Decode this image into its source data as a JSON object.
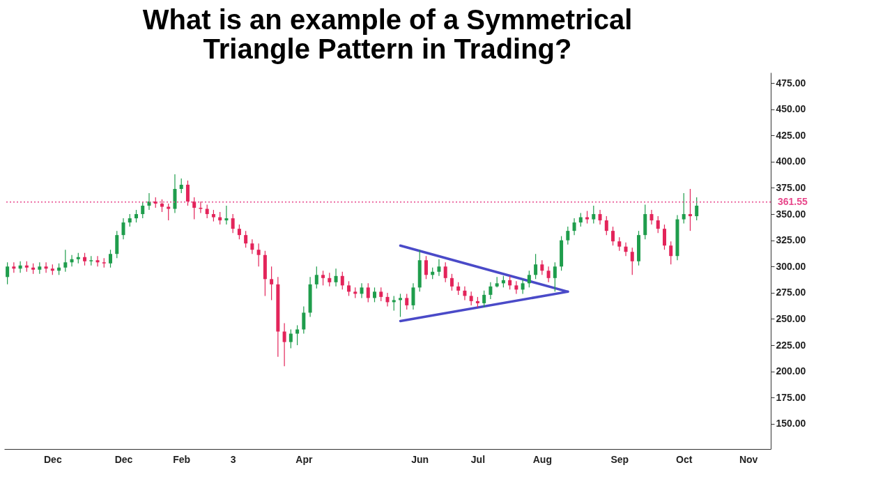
{
  "chart_data": {
    "type": "candlestick",
    "title": "What is an example of a Symmetrical\nTriangle Pattern in Trading?",
    "categories": [
      null,
      null,
      null,
      null,
      null,
      null,
      null,
      "Dec",
      null,
      null,
      null,
      null,
      null,
      null,
      null,
      null,
      null,
      null,
      "Dec",
      null,
      null,
      null,
      null,
      null,
      null,
      null,
      null,
      "Feb",
      null,
      null,
      null,
      null,
      null,
      null,
      null,
      "3",
      null,
      null,
      null,
      null,
      null,
      null,
      null,
      null,
      null,
      null,
      "Apr",
      null,
      null,
      null,
      null,
      null,
      null,
      null,
      null,
      null,
      null,
      null,
      null,
      null,
      null,
      null,
      null,
      null,
      "Jun",
      null,
      null,
      null,
      null,
      null,
      null,
      null,
      null,
      "Jul",
      null,
      null,
      null,
      null,
      null,
      null,
      null,
      null,
      null,
      "Aug",
      null,
      null,
      null,
      null,
      null,
      null,
      null,
      null,
      null,
      null,
      null,
      "Sep",
      null,
      null,
      null,
      null,
      null,
      null,
      null,
      null,
      null,
      "Oct",
      null,
      null,
      null,
      null,
      null,
      null,
      null,
      null,
      null,
      "Nov",
      null,
      null,
      null
    ],
    "ylim": [
      126,
      485
    ],
    "yticks": [
      {
        "value": 150,
        "label": "150.00"
      },
      {
        "value": 175,
        "label": "175.00"
      },
      {
        "value": 200,
        "label": "200.00"
      },
      {
        "value": 225,
        "label": "225.00"
      },
      {
        "value": 250,
        "label": "250.00"
      },
      {
        "value": 275,
        "label": "275.00"
      },
      {
        "value": 300,
        "label": "300.00"
      },
      {
        "value": 325,
        "label": "325.00"
      },
      {
        "value": 350,
        "label": "350.00"
      },
      {
        "value": 375,
        "label": "375.00"
      },
      {
        "value": 400,
        "label": "400.00"
      },
      {
        "value": 425,
        "label": "425.00"
      },
      {
        "value": 450,
        "label": "450.00"
      },
      {
        "value": 475,
        "label": "475.00"
      }
    ],
    "grid": false,
    "ohlc": [
      [
        290,
        304,
        283,
        300
      ],
      [
        300,
        304,
        294,
        298
      ],
      [
        298,
        305,
        294,
        301
      ],
      [
        301,
        305,
        295,
        299
      ],
      [
        299,
        303,
        293,
        297
      ],
      [
        297,
        304,
        293,
        300
      ],
      [
        300,
        304,
        294,
        298
      ],
      [
        298,
        302,
        292,
        296
      ],
      [
        296,
        303,
        292,
        299
      ],
      [
        299,
        316,
        295,
        304
      ],
      [
        304,
        311,
        300,
        307
      ],
      [
        307,
        313,
        303,
        309
      ],
      [
        309,
        313,
        301,
        305
      ],
      [
        305,
        310,
        301,
        306
      ],
      [
        306,
        310,
        300,
        304
      ],
      [
        304,
        308,
        299,
        303
      ],
      [
        303,
        316,
        299,
        312
      ],
      [
        312,
        334,
        308,
        330
      ],
      [
        330,
        346,
        326,
        342
      ],
      [
        342,
        350,
        338,
        346
      ],
      [
        346,
        354,
        342,
        350
      ],
      [
        350,
        362,
        346,
        358
      ],
      [
        358,
        370,
        354,
        362
      ],
      [
        362,
        366,
        356,
        360
      ],
      [
        360,
        364,
        352,
        357
      ],
      [
        357,
        360,
        344,
        355
      ],
      [
        355,
        388,
        351,
        374
      ],
      [
        374,
        384,
        370,
        378
      ],
      [
        378,
        382,
        358,
        362
      ],
      [
        362,
        366,
        345,
        356
      ],
      [
        356,
        362,
        351,
        355
      ],
      [
        355,
        359,
        346,
        350
      ],
      [
        350,
        354,
        343,
        347
      ],
      [
        347,
        352,
        340,
        344
      ],
      [
        344,
        358,
        340,
        346
      ],
      [
        346,
        350,
        332,
        336
      ],
      [
        336,
        340,
        326,
        330
      ],
      [
        330,
        334,
        318,
        322
      ],
      [
        322,
        326,
        312,
        316
      ],
      [
        316,
        322,
        300,
        311
      ],
      [
        311,
        315,
        272,
        288
      ],
      [
        288,
        300,
        268,
        283
      ],
      [
        283,
        290,
        214,
        238
      ],
      [
        238,
        246,
        205,
        228
      ],
      [
        228,
        240,
        222,
        236
      ],
      [
        236,
        244,
        225,
        240
      ],
      [
        240,
        262,
        236,
        256
      ],
      [
        256,
        290,
        252,
        283
      ],
      [
        283,
        300,
        279,
        292
      ],
      [
        292,
        296,
        282,
        289
      ],
      [
        289,
        294,
        281,
        285
      ],
      [
        285,
        298,
        281,
        291
      ],
      [
        291,
        295,
        278,
        282
      ],
      [
        282,
        286,
        272,
        276
      ],
      [
        276,
        280,
        270,
        274
      ],
      [
        274,
        284,
        270,
        280
      ],
      [
        280,
        284,
        266,
        270
      ],
      [
        270,
        280,
        266,
        276
      ],
      [
        276,
        280,
        267,
        271
      ],
      [
        271,
        275,
        262,
        266
      ],
      [
        266,
        272,
        258,
        268
      ],
      [
        268,
        274,
        252,
        270
      ],
      [
        270,
        274,
        259,
        263
      ],
      [
        263,
        284,
        259,
        280
      ],
      [
        280,
        316,
        276,
        306
      ],
      [
        306,
        310,
        288,
        292
      ],
      [
        292,
        299,
        288,
        295
      ],
      [
        295,
        307,
        291,
        300
      ],
      [
        300,
        304,
        285,
        289
      ],
      [
        289,
        293,
        277,
        281
      ],
      [
        281,
        285,
        273,
        277
      ],
      [
        277,
        281,
        268,
        272
      ],
      [
        272,
        276,
        263,
        267
      ],
      [
        267,
        271,
        261,
        265
      ],
      [
        265,
        277,
        261,
        273
      ],
      [
        273,
        285,
        269,
        281
      ],
      [
        281,
        290,
        280,
        284
      ],
      [
        284,
        291,
        280,
        287
      ],
      [
        287,
        291,
        278,
        282
      ],
      [
        282,
        286,
        274,
        278
      ],
      [
        278,
        288,
        274,
        284
      ],
      [
        284,
        296,
        280,
        292
      ],
      [
        292,
        312,
        288,
        302
      ],
      [
        302,
        306,
        292,
        296
      ],
      [
        296,
        300,
        285,
        289
      ],
      [
        289,
        304,
        276,
        300
      ],
      [
        300,
        329,
        296,
        325
      ],
      [
        325,
        338,
        321,
        334
      ],
      [
        334,
        346,
        330,
        342
      ],
      [
        342,
        351,
        338,
        347
      ],
      [
        347,
        353,
        341,
        345
      ],
      [
        345,
        358,
        341,
        350
      ],
      [
        350,
        354,
        340,
        344
      ],
      [
        344,
        348,
        330,
        334
      ],
      [
        334,
        338,
        320,
        324
      ],
      [
        324,
        328,
        315,
        319
      ],
      [
        319,
        323,
        310,
        314
      ],
      [
        314,
        318,
        292,
        305
      ],
      [
        305,
        334,
        301,
        330
      ],
      [
        330,
        359,
        326,
        350
      ],
      [
        350,
        354,
        340,
        344
      ],
      [
        344,
        348,
        332,
        336
      ],
      [
        336,
        340,
        316,
        320
      ],
      [
        320,
        324,
        302,
        310
      ],
      [
        310,
        349,
        306,
        345
      ],
      [
        345,
        370,
        341,
        350
      ],
      [
        350,
        374,
        334,
        348
      ],
      [
        348,
        366,
        344,
        358
      ],
      null,
      null,
      null,
      null,
      null,
      null,
      null,
      null,
      null,
      null,
      null
    ],
    "colors": [
      "#1f9d4c",
      "#e3245a",
      "#1f9d4c",
      "#e3245a",
      "#e3245a",
      "#1f9d4c",
      "#e3245a",
      "#e3245a",
      "#1f9d4c",
      "#1f9d4c",
      "#1f9d4c",
      "#1f9d4c",
      "#e3245a",
      "#1f9d4c",
      "#e3245a",
      "#e3245a",
      "#1f9d4c",
      "#1f9d4c",
      "#1f9d4c",
      "#1f9d4c",
      "#1f9d4c",
      "#1f9d4c",
      "#1f9d4c",
      "#e3245a",
      "#e3245a",
      "#e3245a",
      "#1f9d4c",
      "#1f9d4c",
      "#e3245a",
      "#e3245a",
      "#e3245a",
      "#e3245a",
      "#e3245a",
      "#e3245a",
      "#1f9d4c",
      "#e3245a",
      "#e3245a",
      "#e3245a",
      "#e3245a",
      "#e3245a",
      "#e3245a",
      "#e3245a",
      "#e3245a",
      "#e3245a",
      "#1f9d4c",
      "#1f9d4c",
      "#1f9d4c",
      "#1f9d4c",
      "#1f9d4c",
      "#e3245a",
      "#e3245a",
      "#1f9d4c",
      "#e3245a",
      "#e3245a",
      "#e3245a",
      "#1f9d4c",
      "#e3245a",
      "#1f9d4c",
      "#e3245a",
      "#e3245a",
      "#1f9d4c",
      "#1f9d4c",
      "#e3245a",
      "#1f9d4c",
      "#1f9d4c",
      "#e3245a",
      "#1f9d4c",
      "#1f9d4c",
      "#e3245a",
      "#e3245a",
      "#e3245a",
      "#e3245a",
      "#e3245a",
      "#e3245a",
      "#1f9d4c",
      "#1f9d4c",
      "#1f9d4c",
      "#1f9d4c",
      "#e3245a",
      "#e3245a",
      "#1f9d4c",
      "#1f9d4c",
      "#1f9d4c",
      "#e3245a",
      "#e3245a",
      "#1f9d4c",
      "#1f9d4c",
      "#1f9d4c",
      "#1f9d4c",
      "#1f9d4c",
      "#e3245a",
      "#1f9d4c",
      "#e3245a",
      "#e3245a",
      "#e3245a",
      "#e3245a",
      "#e3245a",
      "#e3245a",
      "#1f9d4c",
      "#1f9d4c",
      "#e3245a",
      "#e3245a",
      "#e3245a",
      "#e3245a",
      "#1f9d4c",
      "#1f9d4c",
      "#e3245a",
      "#1f9d4c",
      null,
      null,
      null,
      null,
      null,
      null,
      null,
      null,
      null,
      null,
      null
    ],
    "series": [
      {
        "type": "line",
        "color": "#4a4ac8",
        "values": [
          null,
          null,
          null,
          null,
          null,
          null,
          null,
          null,
          null,
          null,
          null,
          null,
          null,
          null,
          null,
          null,
          null,
          null,
          null,
          null,
          null,
          null,
          null,
          null,
          null,
          null,
          null,
          null,
          null,
          null,
          null,
          null,
          null,
          null,
          null,
          null,
          null,
          null,
          null,
          null,
          null,
          null,
          null,
          null,
          null,
          null,
          null,
          null,
          null,
          null,
          null,
          null,
          null,
          null,
          null,
          null,
          null,
          null,
          null,
          null,
          null,
          320,
          null,
          null,
          null,
          null,
          null,
          null,
          null,
          null,
          null,
          null,
          null,
          null,
          null,
          null,
          null,
          null,
          null,
          null,
          null,
          null,
          null,
          null,
          null,
          null,
          null,
          276,
          null,
          null,
          null,
          null,
          null,
          null,
          null,
          null,
          null,
          null,
          null,
          null,
          null,
          null,
          null,
          null,
          null,
          null,
          null,
          null,
          null,
          null,
          null,
          null,
          null,
          null,
          null,
          null,
          null,
          null,
          null
        ]
      },
      {
        "type": "line",
        "color": "#4a4ac8",
        "values": [
          null,
          null,
          null,
          null,
          null,
          null,
          null,
          null,
          null,
          null,
          null,
          null,
          null,
          null,
          null,
          null,
          null,
          null,
          null,
          null,
          null,
          null,
          null,
          null,
          null,
          null,
          null,
          null,
          null,
          null,
          null,
          null,
          null,
          null,
          null,
          null,
          null,
          null,
          null,
          null,
          null,
          null,
          null,
          null,
          null,
          null,
          null,
          null,
          null,
          null,
          null,
          null,
          null,
          null,
          null,
          null,
          null,
          null,
          null,
          null,
          null,
          248,
          null,
          null,
          null,
          null,
          null,
          null,
          null,
          null,
          null,
          null,
          null,
          null,
          null,
          null,
          null,
          null,
          null,
          null,
          null,
          null,
          null,
          null,
          null,
          null,
          null,
          276,
          null,
          null,
          null,
          null,
          null,
          null,
          null,
          null,
          null,
          null,
          null,
          null,
          null,
          null,
          null,
          null,
          null,
          null,
          null,
          null,
          null,
          null,
          null,
          null,
          null,
          null,
          null,
          null,
          null,
          null,
          null
        ]
      }
    ],
    "ref_lines": [
      {
        "axis": "y",
        "value": 361.55,
        "label": "361.55",
        "color": "#e8478b",
        "line_style": "dotted"
      }
    ]
  }
}
